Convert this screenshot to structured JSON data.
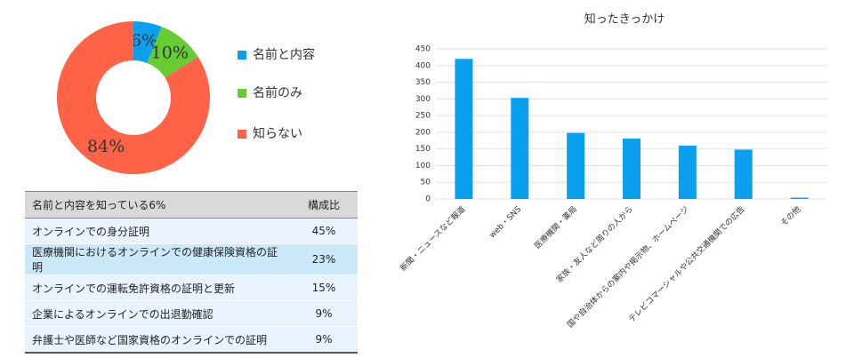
{
  "chart_data": [
    {
      "type": "donut",
      "categories": [
        "名前と内容",
        "名前のみ",
        "知らない"
      ],
      "values": [
        6,
        10,
        84
      ],
      "value_labels": [
        "6%",
        "10%",
        "84%"
      ],
      "colors": [
        "#0aa0f0",
        "#66cc33",
        "#ff6347"
      ]
    },
    {
      "type": "bar",
      "title": "知ったきっかけ",
      "categories": [
        "新聞・ニュースなど報道",
        "web・SNS",
        "医療機関・薬局",
        "家族・友人など周りの人から",
        "国や自治体からの案内や掲示物、ホームページ",
        "テレビコマーシャルや公共交通機関での広告",
        "その他"
      ],
      "values": [
        420,
        303,
        198,
        181,
        160,
        148,
        4
      ],
      "color": "#0aa0f0",
      "ylim": [
        0,
        450
      ],
      "yticks": [
        0,
        50,
        100,
        150,
        200,
        250,
        300,
        350,
        400,
        450
      ],
      "grid": true
    }
  ],
  "table": {
    "header": [
      "名前と内容を知っている6%",
      "構成比"
    ],
    "rows": [
      [
        "オンラインでの身分証明",
        "45%"
      ],
      [
        "医療機関におけるオンラインでの健康保険資格の証明",
        "23%"
      ],
      [
        "オンラインでの運転免許資格の証明と更新",
        "15%"
      ],
      [
        "企業によるオンラインでの出退勤確認",
        "9%"
      ],
      [
        "弁護士や医師など国家資格のオンラインでの証明",
        "9%"
      ]
    ]
  }
}
